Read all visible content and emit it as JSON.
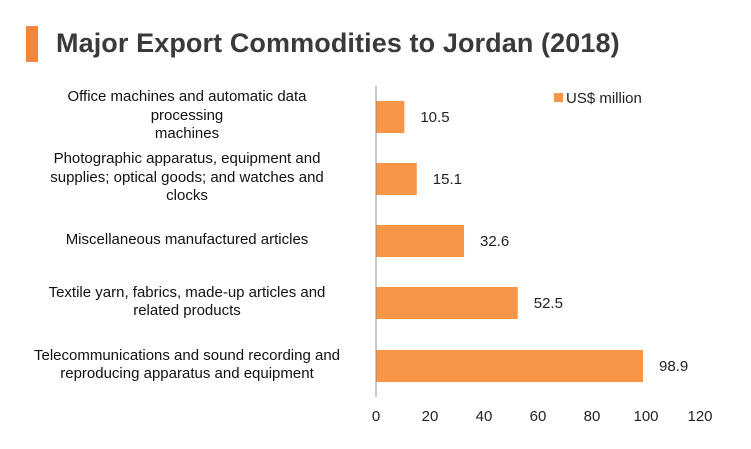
{
  "header": {
    "title": "Major Export Commodities to Jordan (2018)",
    "accent_color": "#F0873A"
  },
  "chart_data": {
    "type": "bar",
    "orientation": "horizontal",
    "title": "Major Export Commodities to Jordan (2018)",
    "categories": [
      [
        "Office machines and automatic data",
        "processing",
        "machines"
      ],
      [
        "Photographic apparatus, equipment and",
        "supplies; optical goods; and watches and",
        "clocks"
      ],
      [
        "Miscellaneous manufactured articles"
      ],
      [
        "Textile yarn, fabrics, made-up articles and",
        "related products"
      ],
      [
        "Telecommunications and sound recording and",
        "reproducing apparatus and equipment"
      ]
    ],
    "series": [
      {
        "name": "US$ million",
        "values": [
          10.5,
          15.1,
          32.6,
          52.5,
          98.9
        ],
        "value_labels": [
          "10.5",
          "15.1",
          "32.6",
          "52.5",
          "98.9"
        ],
        "color": "#F79646"
      }
    ],
    "xlim": [
      0,
      120
    ],
    "x_ticks": [
      "0",
      "20",
      "40",
      "60",
      "80",
      "100",
      "120"
    ],
    "legend_position": "top-right",
    "grid": false
  }
}
